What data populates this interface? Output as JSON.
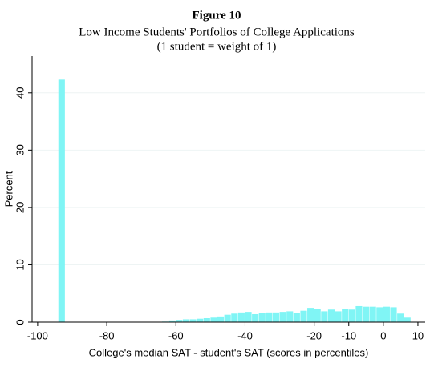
{
  "chart_data": {
    "type": "histogram",
    "title": "Figure 10",
    "subtitle": [
      "Low Income Students' Portfolios of College Applications",
      "(1 student = weight of 1)"
    ],
    "x_label": "College's median SAT - student's SAT (scores in percentiles)",
    "y_label": "Percent",
    "bins": [
      -94,
      -92,
      -90,
      -88,
      -86,
      -84,
      -82,
      -80,
      -78,
      -76,
      -74,
      -72,
      -70,
      -68,
      -66,
      -64,
      -62,
      -60,
      -58,
      -56,
      -54,
      -52,
      -50,
      -48,
      -46,
      -44,
      -42,
      -40,
      -38,
      -36,
      -34,
      -32,
      -30,
      -28,
      -26,
      -24,
      -22,
      -20,
      -18,
      -16,
      -14,
      -12,
      -10,
      -8,
      -6,
      -4,
      -2,
      0,
      2,
      4,
      6,
      8
    ],
    "values": [
      42.3,
      0,
      0,
      0,
      0,
      0,
      0,
      0,
      0,
      0,
      0,
      0,
      0,
      0,
      0,
      0.1,
      0.3,
      0.4,
      0.5,
      0.5,
      0.6,
      0.7,
      0.8,
      1.0,
      1.3,
      1.5,
      1.7,
      1.8,
      1.4,
      1.6,
      1.7,
      1.7,
      1.8,
      1.9,
      1.6,
      2.0,
      2.5,
      2.3,
      1.9,
      2.2,
      1.9,
      2.3,
      2.2,
      2.8,
      2.7,
      2.7,
      2.6,
      2.7,
      2.6,
      1.5,
      0.8
    ],
    "color": "#80f5f5",
    "xlim": [
      -101.6,
      12.1
    ],
    "xticks": [
      -100,
      -80,
      -60,
      -40,
      -20,
      -10,
      0,
      10
    ],
    "ylim": [
      0,
      46.4
    ],
    "yticks": [
      0,
      10,
      20,
      30,
      40
    ],
    "grid": true
  }
}
